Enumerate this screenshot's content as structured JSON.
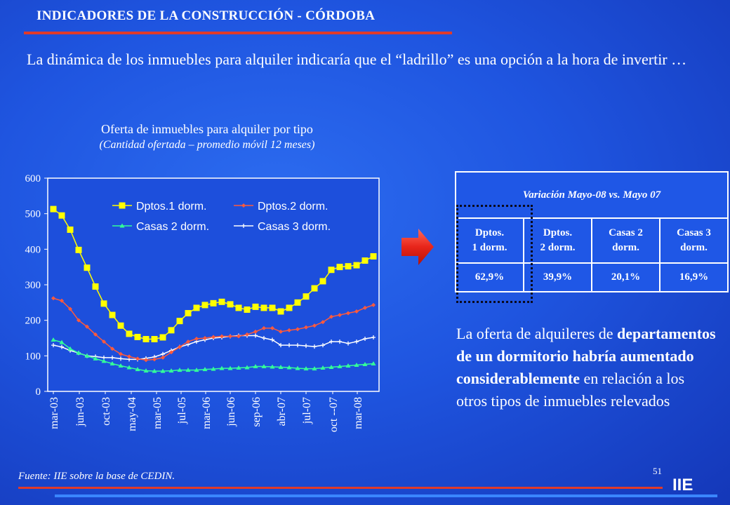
{
  "header": {
    "title": "INDICADORES DE LA CONSTRUCCIÓN - CÓRDOBA",
    "lead": "La dinámica de los inmuebles para alquiler indicaría que el “ladrillo” es una opción a la hora de invertir …"
  },
  "colors": {
    "accent_red": "#e03a2a",
    "series_dptos1": "#ffff00",
    "series_dptos2": "#ff5a3c",
    "series_casas2": "#33ff99",
    "series_casas3": "#ffffff"
  },
  "chart_data": {
    "type": "line",
    "title": "Oferta de inmuebles para alquiler por tipo",
    "subtitle": "(Cantidad ofertada – promedio móvil 12 meses)",
    "xlabel": "",
    "ylabel": "",
    "ylim": [
      0,
      600
    ],
    "y_ticks": [
      0,
      100,
      200,
      300,
      400,
      500,
      600
    ],
    "x_tick_labels": [
      "mar-03",
      "jun-03",
      "oct-03",
      "may-04",
      "mar-05",
      "jul-05",
      "mar-06",
      "jun-06",
      "sep-06",
      "abr-07",
      "jul-07",
      "oct --07",
      "mar-08"
    ],
    "grid": false,
    "legend_placement": "top-right",
    "series": [
      {
        "name": "Dptos.1 dorm.",
        "marker": "square",
        "values": [
          513,
          495,
          455,
          398,
          348,
          295,
          247,
          215,
          185,
          162,
          153,
          147,
          147,
          152,
          172,
          198,
          220,
          235,
          243,
          248,
          252,
          245,
          235,
          230,
          238,
          235,
          235,
          225,
          235,
          250,
          267,
          290,
          310,
          342,
          350,
          352,
          355,
          368,
          380
        ]
      },
      {
        "name": "Dptos.2 dorm.",
        "marker": "diamond",
        "values": [
          262,
          255,
          232,
          200,
          182,
          160,
          140,
          120,
          105,
          98,
          92,
          88,
          90,
          95,
          110,
          125,
          140,
          148,
          150,
          153,
          155,
          155,
          155,
          160,
          168,
          178,
          178,
          168,
          172,
          175,
          180,
          185,
          195,
          210,
          215,
          220,
          225,
          235,
          243
        ]
      },
      {
        "name": "Casas 2 dorm.",
        "marker": "triangle",
        "values": [
          145,
          138,
          120,
          108,
          100,
          92,
          85,
          78,
          72,
          67,
          62,
          58,
          57,
          57,
          58,
          60,
          60,
          60,
          62,
          63,
          65,
          65,
          66,
          67,
          70,
          70,
          69,
          68,
          67,
          65,
          64,
          64,
          66,
          68,
          70,
          72,
          74,
          76,
          78
        ]
      },
      {
        "name": "Casas 3 dorm.",
        "marker": "cross",
        "values": [
          130,
          125,
          115,
          108,
          100,
          98,
          95,
          95,
          92,
          90,
          90,
          93,
          97,
          105,
          115,
          125,
          132,
          140,
          145,
          150,
          152,
          155,
          157,
          157,
          157,
          150,
          145,
          130,
          130,
          130,
          128,
          126,
          130,
          140,
          140,
          135,
          140,
          148,
          152
        ]
      }
    ]
  },
  "table": {
    "header": "Variación Mayo-08 vs. Mayo 07",
    "columns": [
      {
        "line1": "Dptos.",
        "line2": "1 dorm."
      },
      {
        "line1": "Dptos.",
        "line2": "2 dorm."
      },
      {
        "line1": "Casas 2",
        "line2": "dorm."
      },
      {
        "line1": "Casas 3",
        "line2": "dorm."
      }
    ],
    "values": [
      "62,9%",
      "39,9%",
      "20,1%",
      "16,9%"
    ]
  },
  "commentary": {
    "part1": "La oferta de alquileres de",
    "bold": "departamentos de un dormitorio habría aumentado considerablemente",
    "part2": " en relación a los otros tipos de inmuebles relevados"
  },
  "footer": {
    "source": "Fuente: IIE sobre la base de CEDIN.",
    "page_number": "51",
    "brand": "IIE"
  }
}
